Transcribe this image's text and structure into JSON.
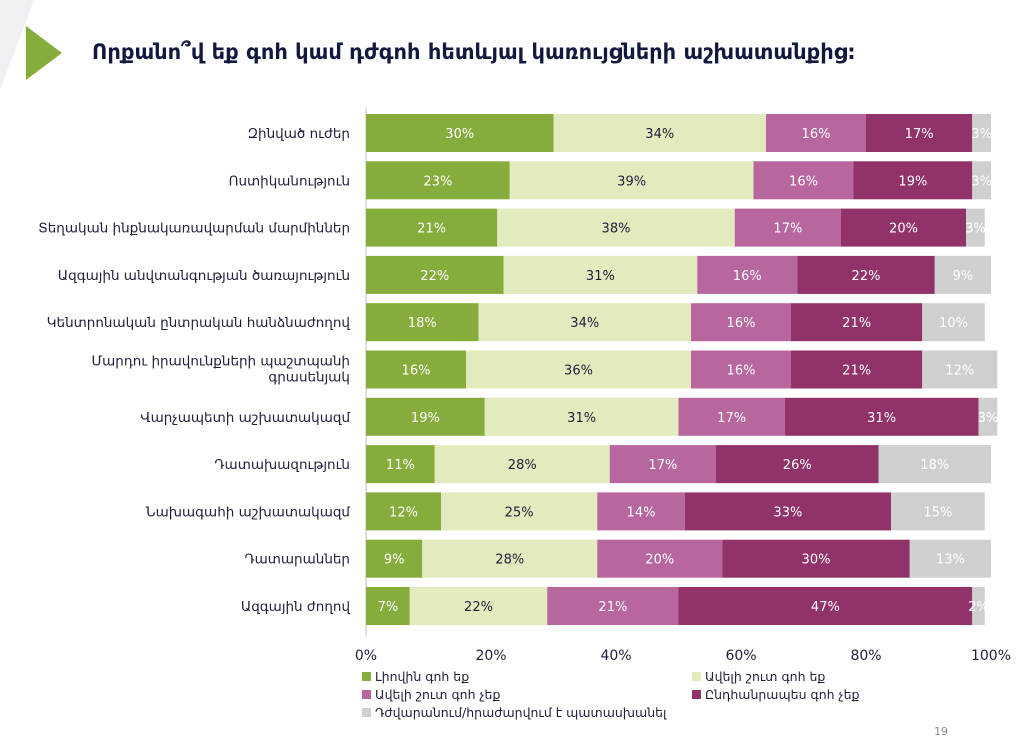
{
  "page": {
    "title": "Որքանո՞վ եք գոհ կամ դժգոհ հետևյալ կառույցների աշխատանքից:",
    "page_number": "19"
  },
  "chart_data": {
    "type": "bar",
    "orientation": "horizontal",
    "stacked": true,
    "categories": [
      "Զինված ուժեր",
      "Ոստիկանություն",
      "Տեղական ինքնակառավարման մարմիններ",
      "Ազգային անվտանգության ծառայություն",
      "Կենտրոնական ընտրական հանձնաժողով",
      "Մարդու իրավունքների պաշտպանի գրասենյակ",
      "Վարչապետի աշխատակազմ",
      "Դատախազություն",
      "Նախագահի աշխատակազմ",
      "Դատարաններ",
      "Ազգային ժողով"
    ],
    "series": [
      {
        "name": "Լիովին գոհ եք",
        "color": "#86ac3c",
        "values": [
          30,
          23,
          21,
          22,
          18,
          16,
          19,
          11,
          12,
          9,
          7
        ]
      },
      {
        "name": "Ավելի շուտ գոհ եք",
        "color": "#e1ebbd",
        "values": [
          34,
          39,
          38,
          31,
          34,
          36,
          31,
          28,
          25,
          28,
          22
        ]
      },
      {
        "name": "Ավելի շուտ գոհ չեք",
        "color": "#b8669e",
        "values": [
          16,
          16,
          17,
          16,
          16,
          16,
          17,
          17,
          14,
          20,
          21
        ]
      },
      {
        "name": "Ընդհանրապես գոհ չեք",
        "color": "#913269",
        "values": [
          17,
          19,
          20,
          22,
          21,
          21,
          31,
          26,
          33,
          30,
          47
        ]
      },
      {
        "name": "Դժվարանում/հրաժարվում է պատասխանել",
        "color": "#cfcfcf",
        "values": [
          3,
          3,
          3,
          9,
          10,
          12,
          3,
          18,
          15,
          13,
          2
        ]
      }
    ],
    "data_labels": [
      [
        "30%",
        "23%",
        "21%",
        "22%",
        "18%",
        "16%",
        "19%",
        "11%",
        "12%",
        "9%",
        "7%"
      ],
      [
        "34%",
        "39%",
        "38%",
        "31%",
        "34%",
        "36%",
        "31%",
        "28%",
        "25%",
        "28%",
        "22%"
      ],
      [
        "16%",
        "16%",
        "17%",
        "16%",
        "16%",
        "16%",
        "17%",
        "17%",
        "14%",
        "20%",
        "21%"
      ],
      [
        "17%",
        "19%",
        "20%",
        "22%",
        "21%",
        "21%",
        "31%",
        "26%",
        "33%",
        "30%",
        "47%"
      ],
      [
        "3%",
        "3%",
        "3%",
        "9%",
        "10%",
        "12%",
        "3%",
        "18%",
        "15%",
        "13%",
        "2%"
      ]
    ],
    "label_colors": [
      "#ffffff",
      "#1f1f3a",
      "#ffffff",
      "#ffffff",
      "#ffffff"
    ],
    "xlim": [
      0,
      100
    ],
    "x_ticks": [
      0,
      20,
      40,
      60,
      80,
      100
    ],
    "x_tick_labels": [
      "0%",
      "20%",
      "40%",
      "60%",
      "80%",
      "100%"
    ],
    "grid": false,
    "legend_position": "bottom"
  }
}
